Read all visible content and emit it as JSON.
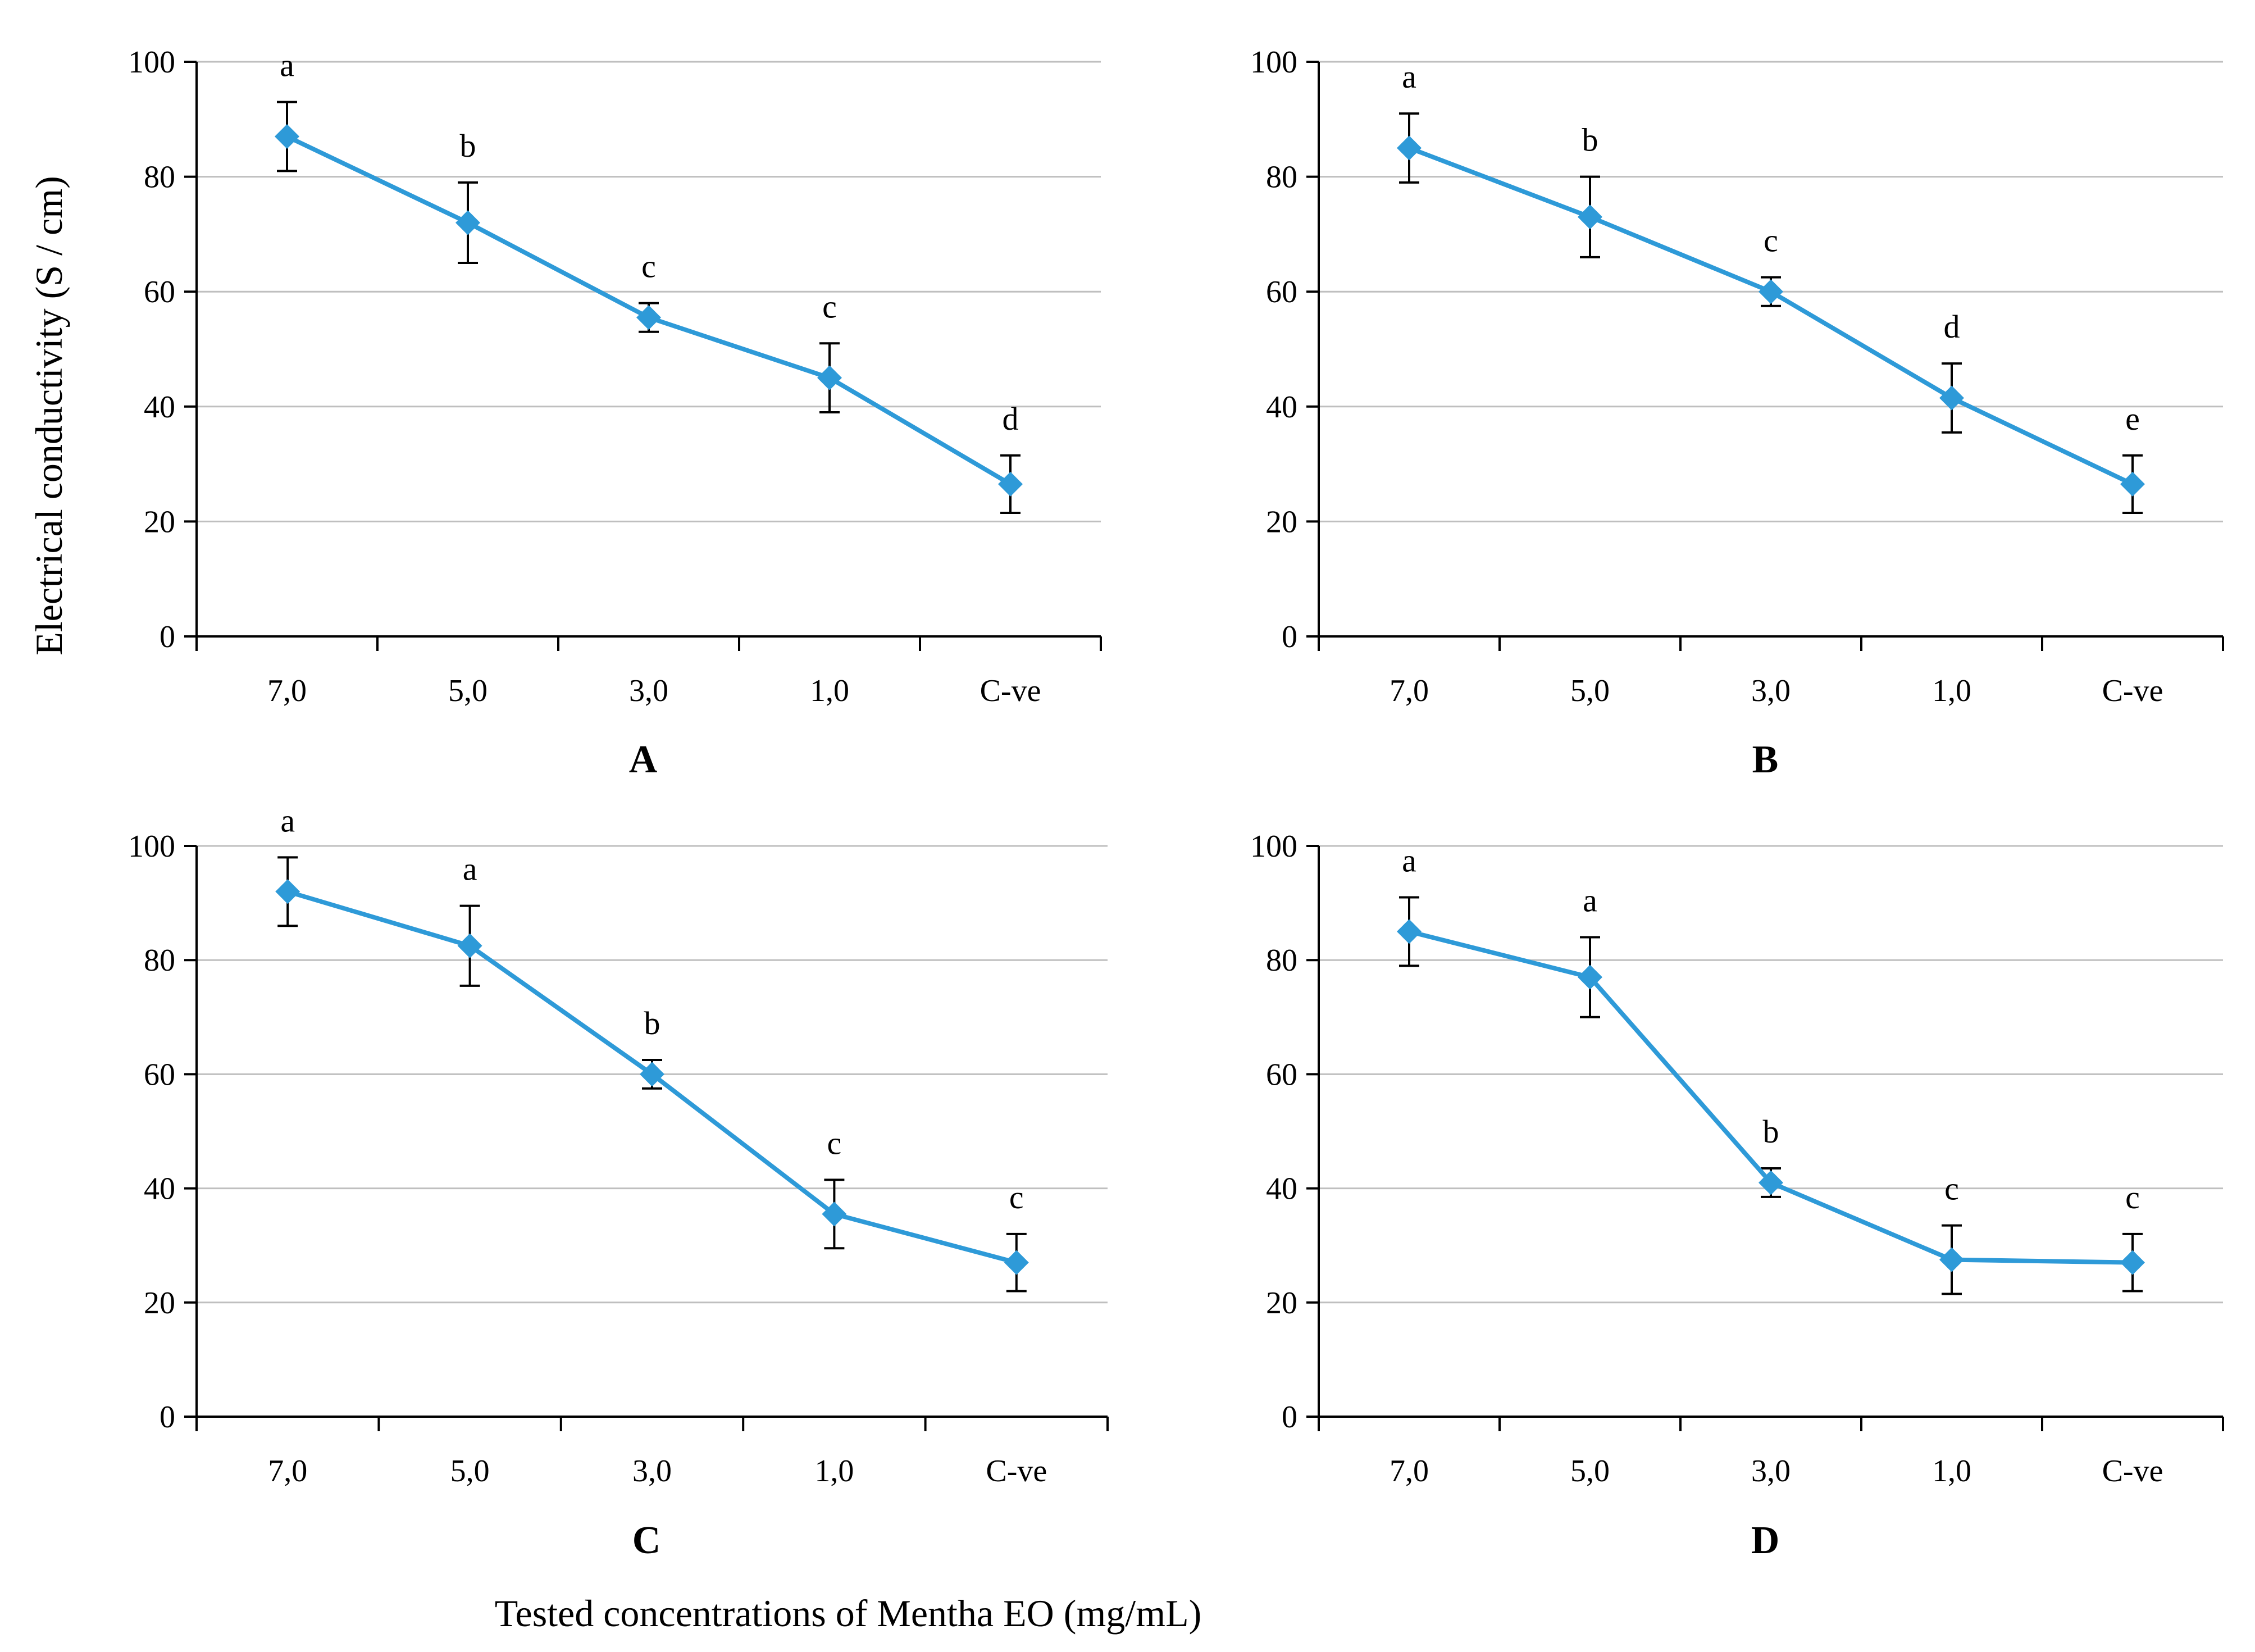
{
  "figure": {
    "ylabel": "Electrical conductivity (S / cm)",
    "xlabel": "Tested concentrations of Mentha EO (mg/mL)"
  },
  "colors": {
    "series": "#2E9AD8",
    "error_bar": "#000000",
    "axis": "#000000",
    "grid": "#BFBFBF"
  },
  "chart_data": [
    {
      "type": "line",
      "panel_label": "A",
      "categories": [
        "7,0",
        "5,0",
        "3,0",
        "1,0",
        "C-ve"
      ],
      "values": [
        87,
        72,
        55.5,
        45,
        26.5
      ],
      "error": [
        6,
        7,
        2.5,
        6,
        5
      ],
      "significance": [
        "a",
        "b",
        "c",
        "c",
        "d"
      ],
      "ylim": [
        0,
        100
      ],
      "yticks": [
        "0",
        "20",
        "40",
        "60",
        "80",
        "100"
      ],
      "grid": true,
      "marker": "diamond"
    },
    {
      "type": "line",
      "panel_label": "B",
      "categories": [
        "7,0",
        "5,0",
        "3,0",
        "1,0",
        "C-ve"
      ],
      "values": [
        85,
        73,
        60,
        41.5,
        26.5
      ],
      "error": [
        6,
        7,
        2.5,
        6,
        5
      ],
      "significance": [
        "a",
        "b",
        "c",
        "d",
        "e"
      ],
      "ylim": [
        0,
        100
      ],
      "yticks": [
        "0",
        "20",
        "40",
        "60",
        "80",
        "100"
      ],
      "grid": true,
      "marker": "diamond"
    },
    {
      "type": "line",
      "panel_label": "C",
      "categories": [
        "7,0",
        "5,0",
        "3,0",
        "1,0",
        "C-ve"
      ],
      "values": [
        92,
        82.5,
        60,
        35.5,
        27
      ],
      "error": [
        6,
        7,
        2.5,
        6,
        5
      ],
      "significance": [
        "a",
        "a",
        "b",
        "c",
        "c"
      ],
      "ylim": [
        0,
        100
      ],
      "yticks": [
        "0",
        "20",
        "40",
        "60",
        "80",
        "100"
      ],
      "grid": true,
      "marker": "diamond"
    },
    {
      "type": "line",
      "panel_label": "D",
      "categories": [
        "7,0",
        "5,0",
        "3,0",
        "1,0",
        "C-ve"
      ],
      "values": [
        85,
        77,
        41,
        27.5,
        27
      ],
      "error": [
        6,
        7,
        2.5,
        6,
        5
      ],
      "significance": [
        "a",
        "a",
        "b",
        "c",
        "c"
      ],
      "ylim": [
        0,
        100
      ],
      "yticks": [
        "0",
        "20",
        "40",
        "60",
        "80",
        "100"
      ],
      "grid": true,
      "marker": "diamond"
    }
  ]
}
